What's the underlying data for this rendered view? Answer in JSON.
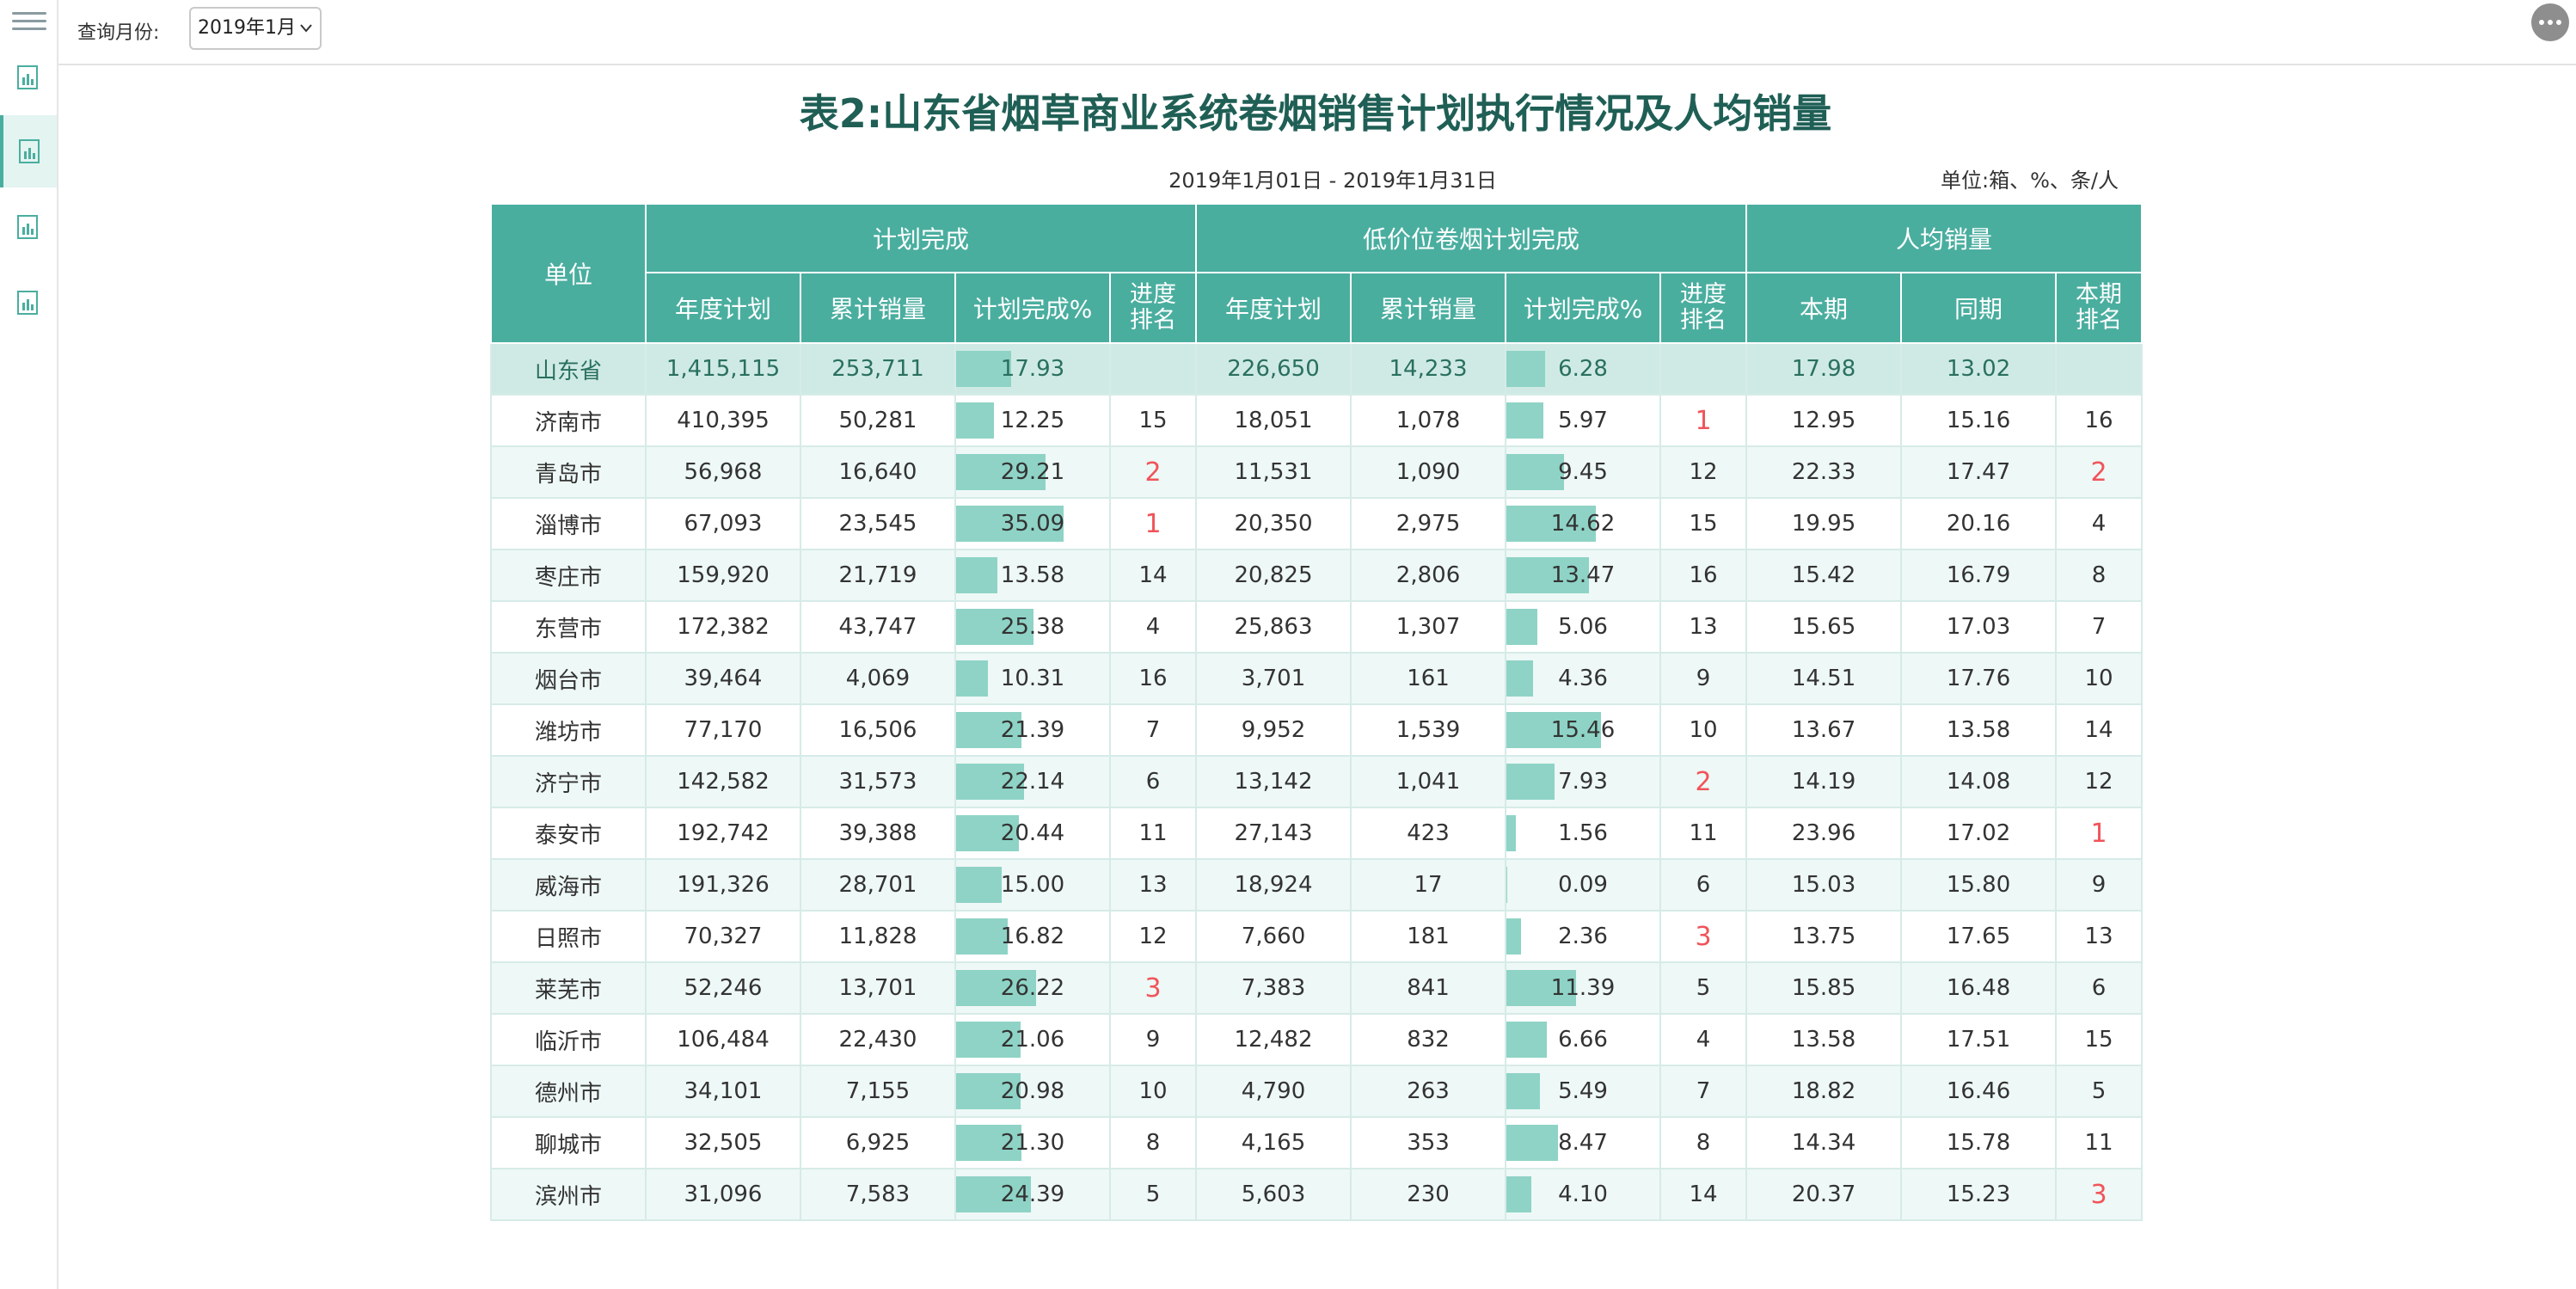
{
  "toolbar": {
    "month_label": "查询月份:",
    "month_value": "2019年1月"
  },
  "sidebar": {
    "items": [
      {
        "icon": "report-icon"
      },
      {
        "icon": "report-icon",
        "active": true
      },
      {
        "icon": "report-icon"
      },
      {
        "icon": "report-icon"
      }
    ]
  },
  "report": {
    "title": "表2:山东省烟草商业系统卷烟销售计划执行情况及人均销量",
    "date_range": "2019年1月01日 - 2019年1月31日",
    "unit": "单位:箱、%、条/人",
    "header": {
      "unit_col": "单位",
      "groups": [
        "计划完成",
        "低价位卷烟计划完成",
        "人均销量"
      ],
      "sub": [
        "年度计划",
        "累计销量",
        "计划完成%",
        "进度排名",
        "年度计划",
        "累计销量",
        "计划完成%",
        "进度排名",
        "本期",
        "同期",
        "本期排名"
      ]
    },
    "rows": [
      [
        "山东省",
        "1,415,115",
        "253,711",
        "17.93",
        "",
        "226,650",
        "14,233",
        "6.28",
        "",
        "17.98",
        "13.02",
        ""
      ],
      [
        "济南市",
        "410,395",
        "50,281",
        "12.25",
        "15",
        "18,051",
        "1,078",
        "5.97",
        "1",
        "12.95",
        "15.16",
        "16"
      ],
      [
        "青岛市",
        "56,968",
        "16,640",
        "29.21",
        "2",
        "11,531",
        "1,090",
        "9.45",
        "12",
        "22.33",
        "17.47",
        "2"
      ],
      [
        "淄博市",
        "67,093",
        "23,545",
        "35.09",
        "1",
        "20,350",
        "2,975",
        "14.62",
        "15",
        "19.95",
        "20.16",
        "4"
      ],
      [
        "枣庄市",
        "159,920",
        "21,719",
        "13.58",
        "14",
        "20,825",
        "2,806",
        "13.47",
        "16",
        "15.42",
        "16.79",
        "8"
      ],
      [
        "东营市",
        "172,382",
        "43,747",
        "25.38",
        "4",
        "25,863",
        "1,307",
        "5.06",
        "13",
        "15.65",
        "17.03",
        "7"
      ],
      [
        "烟台市",
        "39,464",
        "4,069",
        "10.31",
        "16",
        "3,701",
        "161",
        "4.36",
        "9",
        "14.51",
        "17.76",
        "10"
      ],
      [
        "潍坊市",
        "77,170",
        "16,506",
        "21.39",
        "7",
        "9,952",
        "1,539",
        "15.46",
        "10",
        "13.67",
        "13.58",
        "14"
      ],
      [
        "济宁市",
        "142,582",
        "31,573",
        "22.14",
        "6",
        "13,142",
        "1,041",
        "7.93",
        "2",
        "14.19",
        "14.08",
        "12"
      ],
      [
        "泰安市",
        "192,742",
        "39,388",
        "20.44",
        "11",
        "27,143",
        "423",
        "1.56",
        "11",
        "23.96",
        "17.02",
        "1"
      ],
      [
        "威海市",
        "191,326",
        "28,701",
        "15.00",
        "13",
        "18,924",
        "17",
        "0.09",
        "6",
        "15.03",
        "15.80",
        "9"
      ],
      [
        "日照市",
        "70,327",
        "11,828",
        "16.82",
        "12",
        "7,660",
        "181",
        "2.36",
        "3",
        "13.75",
        "17.65",
        "13"
      ],
      [
        "莱芜市",
        "52,246",
        "13,701",
        "26.22",
        "3",
        "7,383",
        "841",
        "11.39",
        "5",
        "15.85",
        "16.48",
        "6"
      ],
      [
        "临沂市",
        "106,484",
        "22,430",
        "21.06",
        "9",
        "12,482",
        "832",
        "6.66",
        "4",
        "13.58",
        "17.51",
        "15"
      ],
      [
        "德州市",
        "34,101",
        "7,155",
        "20.98",
        "10",
        "4,790",
        "263",
        "5.49",
        "7",
        "18.82",
        "16.46",
        "5"
      ],
      [
        "聊城市",
        "32,505",
        "6,925",
        "21.30",
        "8",
        "4,165",
        "353",
        "8.47",
        "8",
        "14.34",
        "15.78",
        "11"
      ],
      [
        "滨州市",
        "31,096",
        "7,583",
        "24.39",
        "5",
        "5,603",
        "230",
        "4.10",
        "14",
        "20.37",
        "15.23",
        "3"
      ]
    ]
  },
  "colors": {
    "header_bg": "#4aae9f",
    "bar_fill": "#8ed3c6",
    "highlight_rank": "#f0545a",
    "title": "#1f5f55"
  }
}
